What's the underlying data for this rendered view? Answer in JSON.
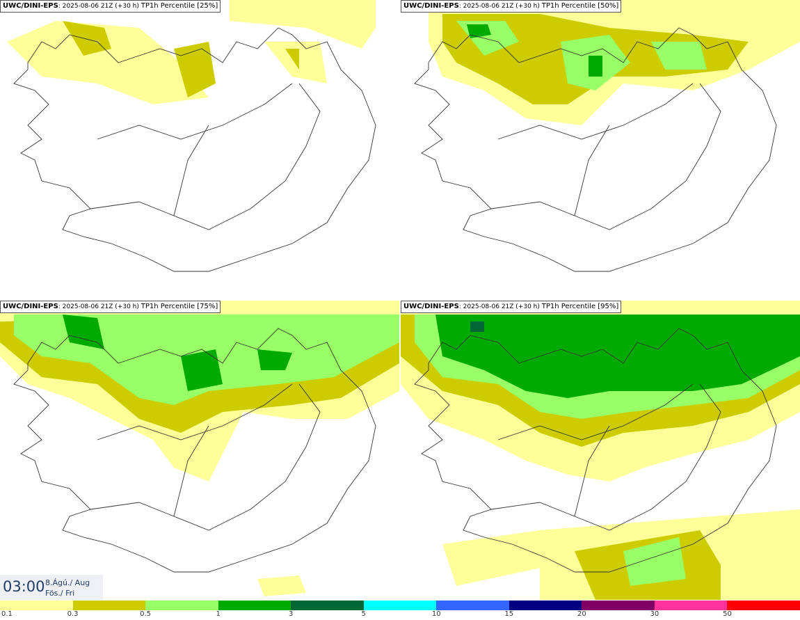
{
  "panels": [
    {
      "model": "UWC/DINI-EPS",
      "run": ": 2025-08-06 21Z (+30 h) ",
      "variable": "TP1h Percentile [25%]"
    },
    {
      "model": "UWC/DINI-EPS",
      "run": ": 2025-08-06 21Z (+30 h) ",
      "variable": "TP1h Percentile [50%]"
    },
    {
      "model": "UWC/DINI-EPS",
      "run": ": 2025-08-06 21Z (+30 h) ",
      "variable": "TP1h Percentile [75%]"
    },
    {
      "model": "UWC/DINI-EPS",
      "run": ": 2025-08-06 21Z (+30 h) ",
      "variable": "TP1h Percentile [95%]"
    }
  ],
  "valid_time": {
    "time": "03:00",
    "date_line1": "8.Ágú./ Aug",
    "date_line2": "Fös./ Fri"
  },
  "colorbar": {
    "colors": [
      "#ffff99",
      "#cccc00",
      "#99ff66",
      "#00aa00",
      "#006633",
      "#00ffff",
      "#3366ff",
      "#000080",
      "#800066",
      "#ff3399",
      "#ff0000"
    ],
    "labels": [
      "0.1",
      "0.3",
      "0.5",
      "1",
      "3",
      "5",
      "10",
      "15",
      "20",
      "30",
      "50"
    ]
  }
}
